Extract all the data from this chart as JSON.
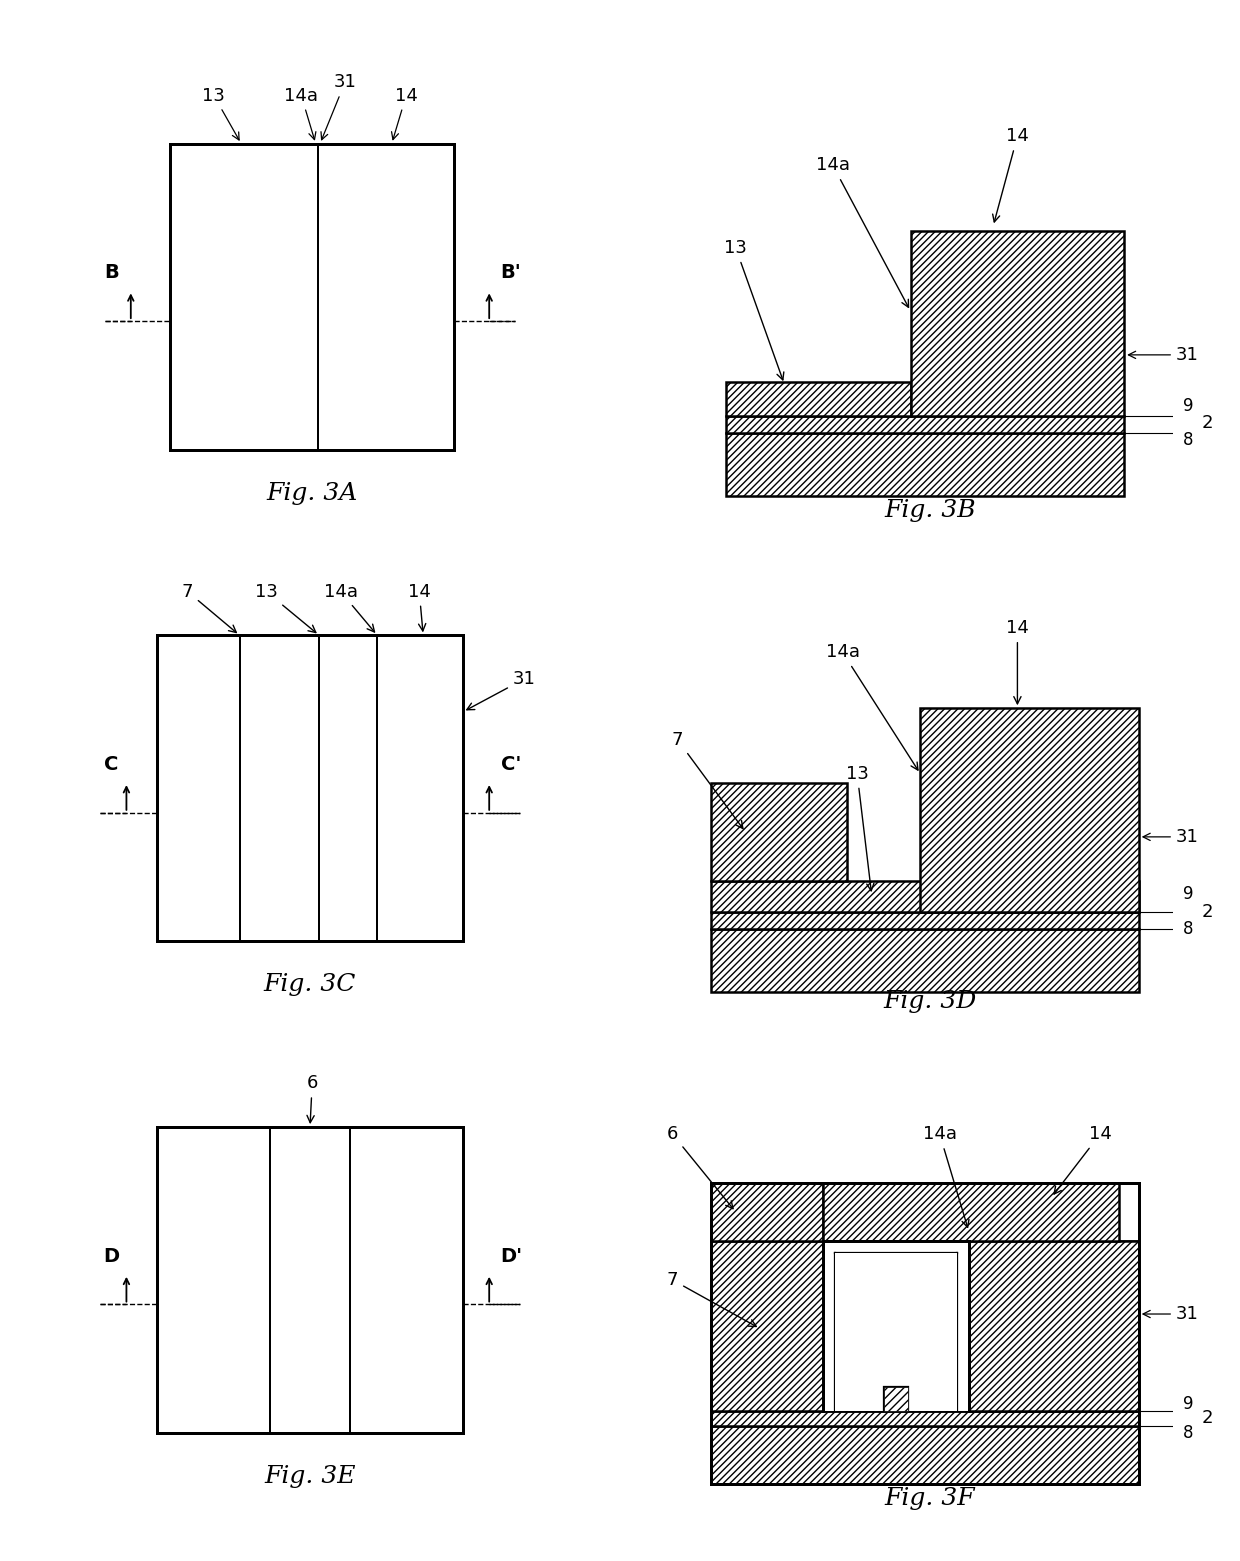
{
  "bg_color": "#ffffff",
  "line_color": "#000000",
  "fig_labels": [
    "Fig. 3A",
    "Fig. 3B",
    "Fig. 3C",
    "Fig. 3D",
    "Fig. 3E",
    "Fig. 3F"
  ],
  "fig_label_fontsize": 18,
  "ann_fontsize": 13,
  "lw": 1.8
}
